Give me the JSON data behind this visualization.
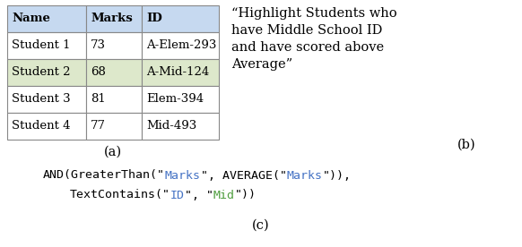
{
  "table_headers": [
    "Name",
    "Marks",
    "ID"
  ],
  "table_rows": [
    [
      "Student 1",
      "73",
      "A-Elem-293"
    ],
    [
      "Student 2",
      "68",
      "A-Mid-124"
    ],
    [
      "Student 3",
      "81",
      "Elem-394"
    ],
    [
      "Student 4",
      "77",
      "Mid-493"
    ]
  ],
  "header_bg": "#c6d9f0",
  "highlight_row_idx": 1,
  "highlight_bg": "#dde8cb",
  "default_bg": "#ffffff",
  "border_color": "#888888",
  "description": "“Highlight Students who\nhave Middle School ID\nand have scored above\nAverage”",
  "formula_line1_parts": [
    {
      "text": "AND(GreaterThan(\"",
      "color": "#000000"
    },
    {
      "text": "Marks",
      "color": "#4472c4"
    },
    {
      "text": "\", AVERAGE(\"",
      "color": "#000000"
    },
    {
      "text": "Marks",
      "color": "#4472c4"
    },
    {
      "text": "\")),",
      "color": "#000000"
    }
  ],
  "formula_line2_parts": [
    {
      "text": "TextContains(\"",
      "color": "#000000"
    },
    {
      "text": "ID",
      "color": "#4472c4"
    },
    {
      "text": "\", \"",
      "color": "#000000"
    },
    {
      "text": "Mid",
      "color": "#4f9e3f"
    },
    {
      "text": "\"))",
      "color": "#000000"
    }
  ],
  "label_a": "(a)",
  "label_b": "(b)",
  "label_c": "(c)",
  "fs_table": 9.5,
  "fs_desc": 10.5,
  "fs_formula": 9.5,
  "fs_label": 10.5
}
